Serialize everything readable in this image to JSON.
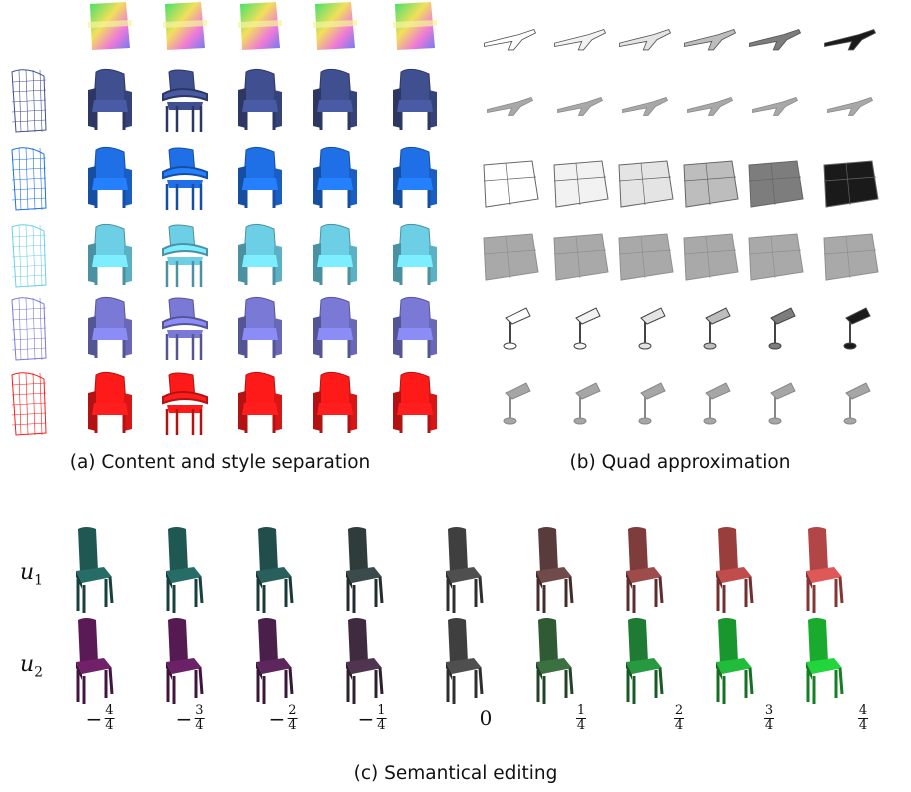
{
  "captions": {
    "a": "(a) Content and style separation",
    "b": "(b) Quad approximation",
    "c": "(c) Semantical editing"
  },
  "rows": {
    "u1": "u",
    "u1_sub": "1",
    "u2": "u",
    "u2_sub": "2"
  },
  "scale": [
    {
      "sign": "−",
      "num": "4",
      "den": "4"
    },
    {
      "sign": "−",
      "num": "3",
      "den": "4"
    },
    {
      "sign": "−",
      "num": "2",
      "den": "4"
    },
    {
      "sign": "−",
      "num": "1",
      "den": "4"
    },
    {
      "zero": "0"
    },
    {
      "sign": "",
      "num": "1",
      "den": "4"
    },
    {
      "sign": "",
      "num": "2",
      "den": "4"
    },
    {
      "sign": "",
      "num": "3",
      "den": "4"
    },
    {
      "sign": "",
      "num": "4",
      "den": "4"
    }
  ],
  "colors": {
    "row_dark_blue": "#3f4f8f",
    "row_blue": "#1f6fe6",
    "row_cyan": "#6ccfe6",
    "row_purple": "#7a7ad6",
    "row_red": "#ff1a1a",
    "u1_gradient": [
      "#1f5752",
      "#1f5752",
      "#214d4a",
      "#2f3c3c",
      "#3f3f3f",
      "#5a3b3b",
      "#7e3c3c",
      "#9a3d3d",
      "#b24646"
    ],
    "u2_gradient": [
      "#5a1a55",
      "#551a52",
      "#4a1f4a",
      "#3f2a3f",
      "#3f3f3f",
      "#2f5a34",
      "#1f7a33",
      "#1a962f",
      "#1aaa2e"
    ]
  }
}
